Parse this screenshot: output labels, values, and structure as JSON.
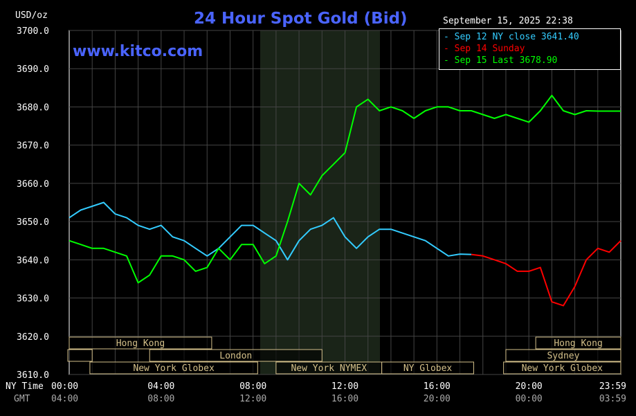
{
  "header": {
    "title": "24 Hour Spot Gold (Bid)",
    "unit": "USD/oz",
    "timestamp": "September 15, 2025 22:38",
    "website": "www.kitco.com"
  },
  "axis_row_labels": {
    "ny": "NY Time",
    "gmt": "GMT"
  },
  "colors": {
    "title": "#4a64ff",
    "series_blue": "#33ccff",
    "series_red": "#ff0000",
    "series_green": "#00ff00",
    "session_border": "#d4c08a"
  },
  "sessions": {
    "row1": [
      {
        "label": "Hong Kong"
      },
      {
        "label": "Hong Kong"
      }
    ],
    "row2": [
      {
        "label": "London"
      },
      {
        "label": "Sydney"
      }
    ],
    "row3": [
      {
        "label": "New York Globex"
      },
      {
        "label": "New York NYMEX"
      },
      {
        "label": "NY Globex"
      },
      {
        "label": "New York Globex"
      }
    ]
  },
  "chart_data": {
    "type": "line",
    "title": "24 Hour Spot Gold (Bid)",
    "ylabel": "USD/oz",
    "ylim": [
      3610,
      3700
    ],
    "y_ticks": [
      "3610.0",
      "3620.0",
      "3630.0",
      "3640.0",
      "3650.0",
      "3660.0",
      "3670.0",
      "3680.0",
      "3690.0",
      "3700.0"
    ],
    "x_ticks_ny": [
      "00:00",
      "04:00",
      "08:00",
      "12:00",
      "16:00",
      "20:00",
      "23:59"
    ],
    "x_ticks_gmt": [
      "04:00",
      "08:00",
      "12:00",
      "16:00",
      "20:00",
      "00:00",
      "03:59"
    ],
    "grid": true,
    "legend_position": "top-right",
    "series": [
      {
        "name": "Sep 12 NY close 3641.40",
        "color": "#33ccff",
        "x": [
          0,
          0.5,
          1,
          1.5,
          2,
          2.5,
          3,
          3.5,
          4,
          4.5,
          5,
          5.5,
          6,
          6.5,
          7,
          7.5,
          8,
          8.5,
          9,
          9.5,
          10,
          10.5,
          11,
          11.5,
          12,
          12.5,
          13,
          13.5,
          14,
          14.5,
          15,
          15.5,
          16,
          16.5,
          17,
          17.5
        ],
        "values": [
          3651,
          3653,
          3654,
          3655,
          3652,
          3651,
          3649,
          3648,
          3649,
          3646,
          3645,
          3643,
          3641,
          3643,
          3646,
          3649,
          3649,
          3647,
          3645,
          3640,
          3645,
          3648,
          3649,
          3651,
          3646,
          3643,
          3646,
          3648,
          3648,
          3647,
          3646,
          3645,
          3643,
          3641,
          3641.5,
          3641.4
        ]
      },
      {
        "name": "Sep 14 Sunday",
        "color": "#ff0000",
        "x": [
          17.5,
          18,
          18.5,
          19,
          19.5,
          20,
          20.5,
          21,
          21.5,
          22,
          22.5,
          23,
          23.5,
          24
        ],
        "values": [
          3641.4,
          3641,
          3640,
          3639,
          3637,
          3637,
          3638,
          3629,
          3628,
          3633,
          3640,
          3643,
          3642,
          3645
        ]
      },
      {
        "name": "Sep 15 Last 3678.90",
        "color": "#00ff00",
        "x": [
          0,
          0.5,
          1,
          1.5,
          2,
          2.5,
          3,
          3.5,
          4,
          4.5,
          5,
          5.5,
          6,
          6.5,
          7,
          7.5,
          8,
          8.5,
          9,
          9.5,
          10,
          10.5,
          11,
          11.5,
          12,
          12.5,
          13,
          13.5,
          14,
          14.5,
          15,
          15.5,
          16,
          16.5,
          17,
          17.5,
          18,
          18.5,
          19,
          19.5,
          20,
          20.5,
          21,
          21.5,
          22,
          22.5,
          23,
          23.5,
          24
        ],
        "values": [
          3645,
          3644,
          3643,
          3643,
          3642,
          3641,
          3634,
          3636,
          3641,
          3641,
          3640,
          3637,
          3638,
          3643,
          3640,
          3644,
          3644,
          3639,
          3641,
          3650,
          3660,
          3657,
          3662,
          3665,
          3668,
          3680,
          3682,
          3679,
          3680,
          3679,
          3677,
          3679,
          3680,
          3680,
          3679,
          3679,
          3678,
          3677,
          3678,
          3677,
          3676,
          3679,
          3683,
          3679,
          3678,
          3679,
          3678.9,
          3678.9,
          3678.9
        ]
      }
    ]
  }
}
